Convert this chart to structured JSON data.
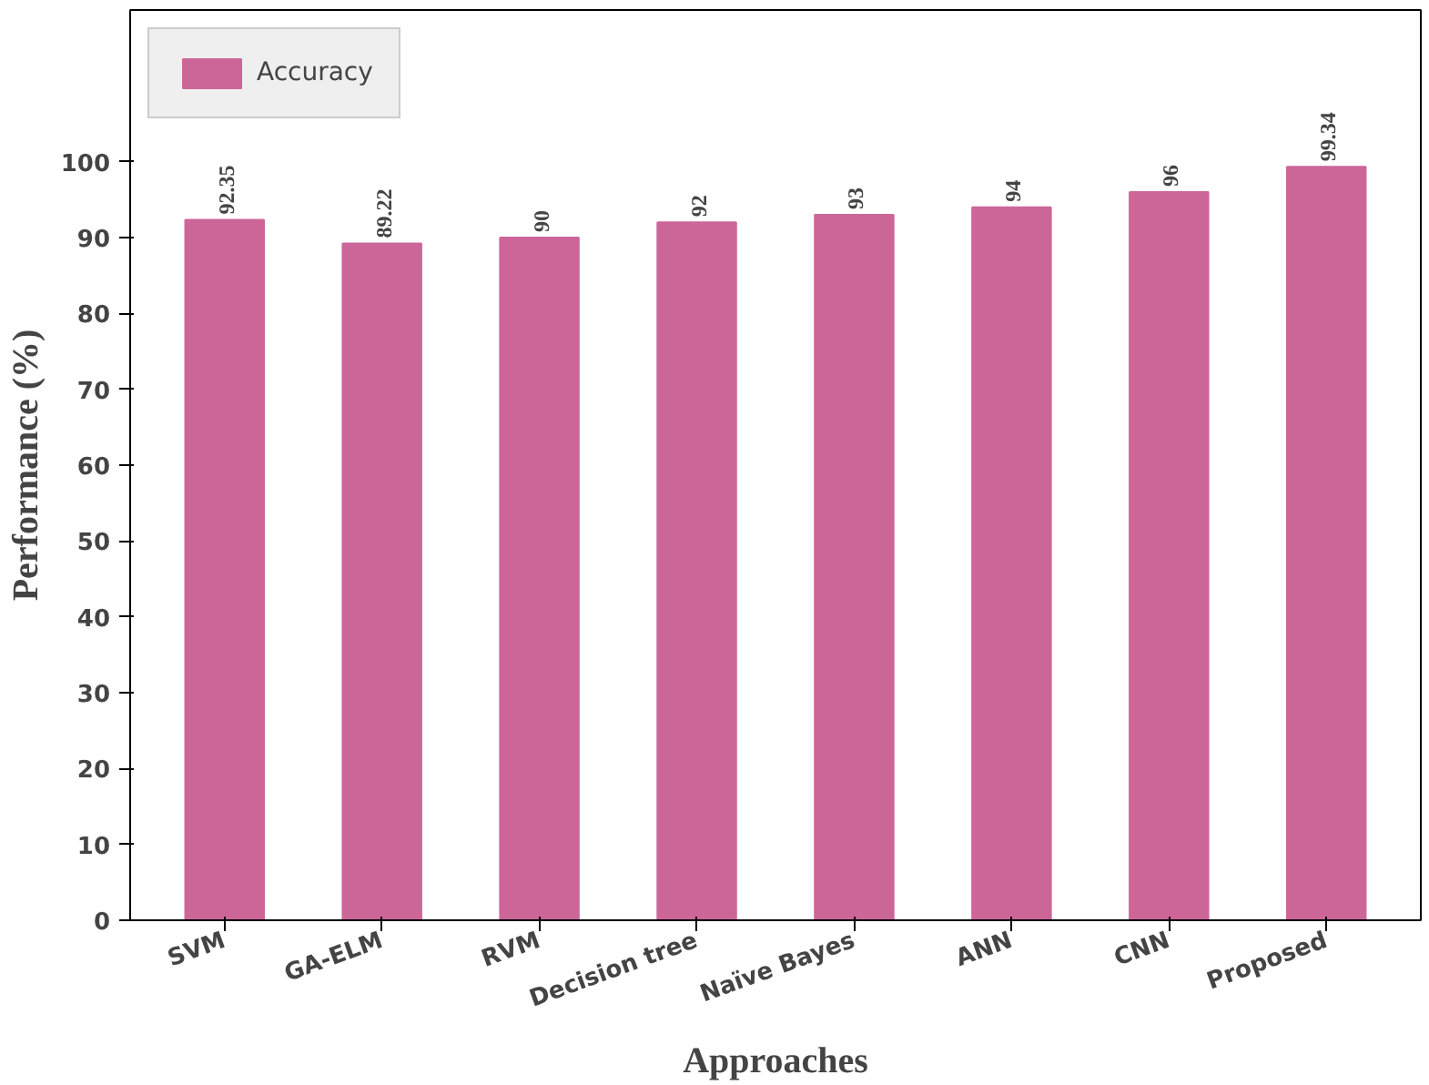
{
  "chart_data": {
    "type": "bar",
    "xlabel": "Approaches",
    "ylabel": "Performance (%)",
    "categories": [
      "SVM",
      "GA-ELM",
      "RVM",
      "Decision tree",
      "Naïve Bayes",
      "ANN",
      "CNN",
      "Proposed"
    ],
    "series": [
      {
        "name": "Accuracy",
        "color": "#cc6699",
        "values": [
          92.35,
          89.22,
          90,
          92,
          93,
          94,
          96,
          99.34
        ]
      }
    ],
    "ylim": [
      0,
      120
    ],
    "yticks": [
      0,
      10,
      20,
      30,
      40,
      50,
      60,
      70,
      80,
      90,
      100
    ],
    "data_labels": true,
    "legend": "top left",
    "grid": false
  }
}
